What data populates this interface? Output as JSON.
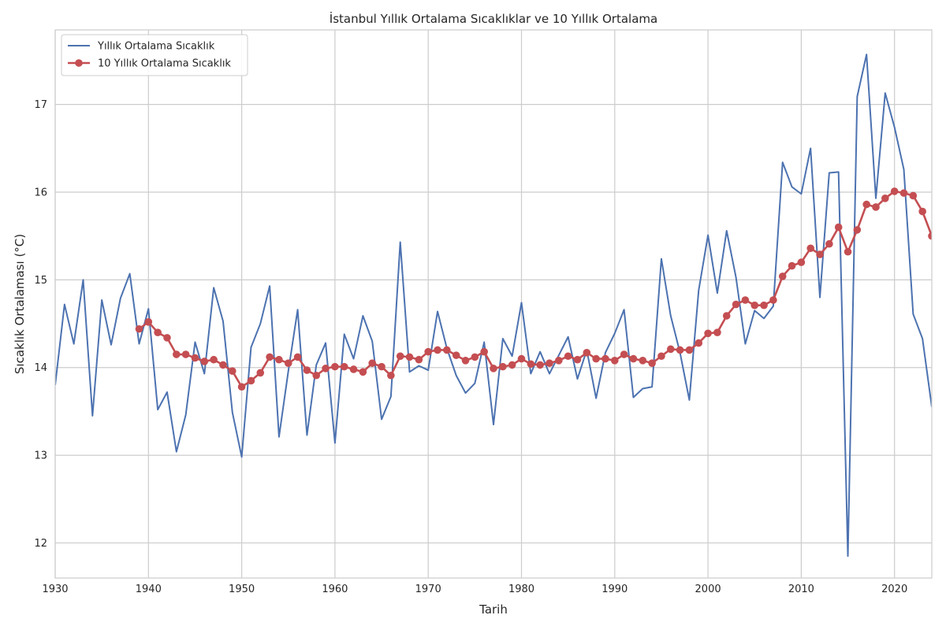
{
  "chart_data": {
    "type": "line",
    "title": "İstanbul Yıllık Ortalama Sıcaklıklar ve 10 Yıllık Ortalama",
    "xlabel": "Tarih",
    "ylabel": "Sıcaklık Ortalaması (°C)",
    "xlim": [
      1930,
      2024
    ],
    "ylim": [
      11.6,
      17.85
    ],
    "xticks": [
      1930,
      1940,
      1950,
      1960,
      1970,
      1980,
      1990,
      2000,
      2010,
      2020
    ],
    "yticks": [
      12,
      13,
      14,
      15,
      16,
      17
    ],
    "grid": true,
    "legend_position": "top-left",
    "colors": {
      "annual": "#4c72b0",
      "rolling": "#c44e52",
      "grid": "#cccccc"
    },
    "series": [
      {
        "name": "Yıllık Ortalama Sıcaklık",
        "style": "line",
        "x": [
          1930,
          1931,
          1932,
          1933,
          1934,
          1935,
          1936,
          1937,
          1938,
          1939,
          1940,
          1941,
          1942,
          1943,
          1944,
          1945,
          1946,
          1947,
          1948,
          1949,
          1950,
          1951,
          1952,
          1953,
          1954,
          1955,
          1956,
          1957,
          1958,
          1959,
          1960,
          1961,
          1962,
          1963,
          1964,
          1965,
          1966,
          1967,
          1968,
          1969,
          1970,
          1971,
          1972,
          1973,
          1974,
          1975,
          1976,
          1977,
          1978,
          1979,
          1980,
          1981,
          1982,
          1983,
          1984,
          1985,
          1986,
          1987,
          1988,
          1989,
          1990,
          1991,
          1992,
          1993,
          1994,
          1995,
          1996,
          1997,
          1998,
          1999,
          2000,
          2001,
          2002,
          2003,
          2004,
          2005,
          2006,
          2007,
          2008,
          2009,
          2010,
          2011,
          2012,
          2013,
          2014,
          2015,
          2016,
          2017,
          2018,
          2019,
          2020,
          2021,
          2022,
          2023,
          2024
        ],
        "values": [
          13.8,
          14.72,
          14.27,
          15.0,
          13.45,
          14.77,
          14.26,
          14.79,
          15.07,
          14.27,
          14.67,
          13.52,
          13.72,
          13.04,
          13.46,
          14.29,
          13.93,
          14.91,
          14.53,
          13.49,
          12.98,
          14.23,
          14.5,
          14.93,
          13.21,
          13.96,
          14.66,
          13.23,
          14.03,
          14.28,
          13.14,
          14.38,
          14.1,
          14.59,
          14.3,
          13.41,
          13.67,
          15.43,
          13.95,
          14.02,
          13.97,
          14.64,
          14.22,
          13.91,
          13.71,
          13.82,
          14.29,
          13.35,
          14.33,
          14.13,
          14.74,
          13.93,
          14.18,
          13.93,
          14.14,
          14.35,
          13.87,
          14.2,
          13.65,
          14.17,
          14.39,
          14.66,
          13.66,
          13.76,
          13.78,
          15.24,
          14.59,
          14.17,
          13.63,
          14.88,
          15.51,
          14.85,
          15.56,
          15.03,
          14.27,
          14.65,
          14.56,
          14.7,
          16.34,
          16.06,
          15.98,
          16.5,
          14.8,
          16.22,
          16.23,
          11.85,
          17.09,
          17.57,
          15.93,
          17.13,
          16.74,
          16.26,
          14.61,
          14.33,
          13.55
        ]
      },
      {
        "name": "10 Yıllık Ortalama Sıcaklık",
        "style": "line-markers",
        "x": [
          1939,
          1940,
          1941,
          1942,
          1943,
          1944,
          1945,
          1946,
          1947,
          1948,
          1949,
          1950,
          1951,
          1952,
          1953,
          1954,
          1955,
          1956,
          1957,
          1958,
          1959,
          1960,
          1961,
          1962,
          1963,
          1964,
          1965,
          1966,
          1967,
          1968,
          1969,
          1970,
          1971,
          1972,
          1973,
          1974,
          1975,
          1976,
          1977,
          1978,
          1979,
          1980,
          1981,
          1982,
          1983,
          1984,
          1985,
          1986,
          1987,
          1988,
          1989,
          1990,
          1991,
          1992,
          1993,
          1994,
          1995,
          1996,
          1997,
          1998,
          1999,
          2000,
          2001,
          2002,
          2003,
          2004,
          2005,
          2006,
          2007,
          2008,
          2009,
          2010,
          2011,
          2012,
          2013,
          2014,
          2015,
          2016,
          2017,
          2018,
          2019,
          2020,
          2021,
          2022,
          2023,
          2024
        ],
        "values": [
          14.44,
          14.52,
          14.4,
          14.34,
          14.15,
          14.15,
          14.11,
          14.07,
          14.09,
          14.03,
          13.96,
          13.78,
          13.85,
          13.94,
          14.12,
          14.09,
          14.05,
          14.12,
          13.97,
          13.91,
          13.99,
          14.01,
          14.01,
          13.98,
          13.95,
          14.05,
          14.01,
          13.91,
          14.13,
          14.12,
          14.09,
          14.18,
          14.2,
          14.2,
          14.14,
          14.08,
          14.12,
          14.18,
          13.99,
          14.01,
          14.03,
          14.1,
          14.04,
          14.03,
          14.05,
          14.08,
          14.13,
          14.09,
          14.17,
          14.1,
          14.1,
          14.08,
          14.15,
          14.1,
          14.08,
          14.05,
          14.13,
          14.21,
          14.2,
          14.2,
          14.28,
          14.39,
          14.4,
          14.59,
          14.72,
          14.77,
          14.71,
          14.71,
          14.77,
          15.04,
          15.16,
          15.2,
          15.36,
          15.29,
          15.41,
          15.6,
          15.32,
          15.57,
          15.86,
          15.83,
          15.93,
          16.01,
          15.99,
          15.96,
          15.78,
          15.5
        ]
      }
    ]
  }
}
